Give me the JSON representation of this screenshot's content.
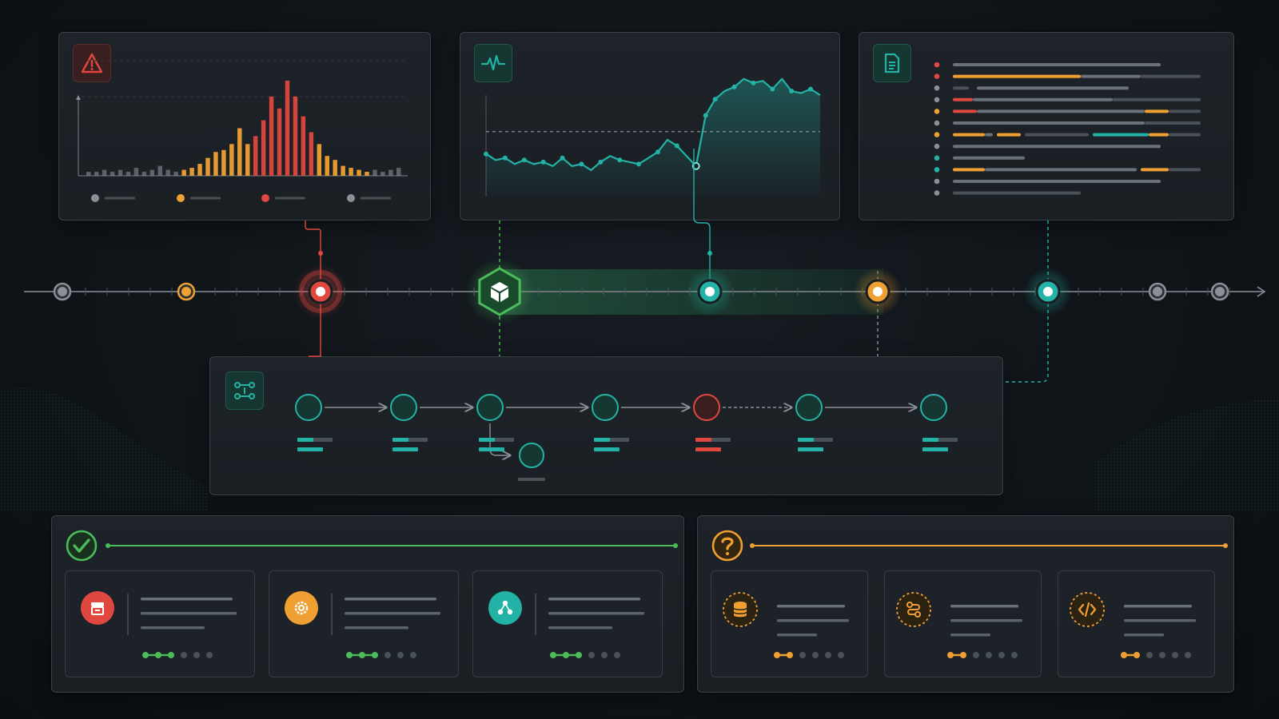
{
  "colors": {
    "red": "#e0473f",
    "orange": "#f0a032",
    "teal": "#22b3a6",
    "green": "#4cbb5a",
    "gray": "#8a9096",
    "line": "#505860",
    "panel_border": "#3a4148"
  },
  "icons": {
    "distribution": "warning-icon",
    "timeseries": "pulse-icon",
    "log": "document-icon",
    "pipeline": "workflow-icon",
    "success_group": "check-circle-icon",
    "pending_group": "question-circle-icon",
    "timeline_hub": "cube-icon"
  },
  "chart_data": [
    {
      "type": "bar",
      "values": [
        1,
        1,
        1.5,
        1,
        1.5,
        1,
        2,
        1,
        1.5,
        2.5,
        1.5,
        1,
        1.5,
        2,
        3,
        4.5,
        6,
        6.5,
        8,
        12,
        8,
        10,
        14,
        20,
        17,
        24,
        20,
        15,
        11,
        8,
        5,
        4,
        2.5,
        2,
        1.5,
        1,
        1.5,
        1,
        1.5,
        2
      ],
      "series_colors": [
        "gray",
        "gray",
        "gray",
        "gray",
        "gray",
        "gray",
        "gray",
        "gray",
        "gray",
        "gray",
        "gray",
        "gray",
        "orange",
        "orange",
        "orange",
        "orange",
        "orange",
        "orange",
        "orange",
        "orange",
        "orange",
        "red",
        "red",
        "red",
        "red",
        "red",
        "red",
        "red",
        "red",
        "orange",
        "orange",
        "orange",
        "orange",
        "orange",
        "orange",
        "orange",
        "gray",
        "gray",
        "gray",
        "gray"
      ],
      "legend_colors": [
        "gray",
        "orange",
        "red",
        "gray"
      ]
    },
    {
      "type": "area",
      "values": [
        41,
        38,
        39,
        36,
        38,
        36,
        37,
        35,
        39,
        35,
        36,
        33,
        37,
        40,
        38,
        37,
        36,
        39,
        42,
        48,
        45,
        40,
        35,
        60,
        68,
        72,
        74,
        78,
        76,
        77,
        73,
        78,
        72,
        71,
        73,
        70
      ],
      "threshold": 52
    }
  ],
  "pipeline": {
    "nodes": [
      "teal",
      "teal",
      "teal",
      "teal",
      "red",
      "teal",
      "teal"
    ],
    "branch_node": "teal"
  },
  "success_group": {
    "cards": [
      {
        "icon": "archive-icon",
        "color": "red",
        "progress_filled": 3,
        "progress_total": 6
      },
      {
        "icon": "gear-icon",
        "color": "orange",
        "progress_filled": 3,
        "progress_total": 6
      },
      {
        "icon": "network-icon",
        "color": "teal",
        "progress_filled": 3,
        "progress_total": 6
      }
    ]
  },
  "pending_group": {
    "cards": [
      {
        "icon": "database-icon",
        "progress_filled": 2,
        "progress_total": 6
      },
      {
        "icon": "route-icon",
        "progress_filled": 2,
        "progress_total": 6
      },
      {
        "icon": "code-icon",
        "progress_filled": 2,
        "progress_total": 6
      }
    ]
  }
}
